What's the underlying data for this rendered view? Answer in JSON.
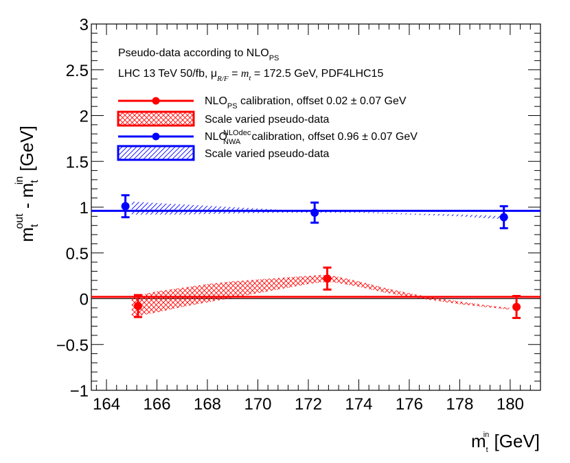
{
  "chart_data": {
    "type": "scatter",
    "x_axis": {
      "title_main": "m",
      "title_sub": "t",
      "title_sup": "in",
      "title_unit": " [GeV]",
      "range": [
        163.4,
        181.2
      ],
      "major_ticks": [
        164,
        166,
        168,
        170,
        172,
        174,
        176,
        178,
        180
      ],
      "tick_labels": [
        "164",
        "166",
        "168",
        "170",
        "172",
        "174",
        "176",
        "178",
        "180"
      ]
    },
    "y_axis": {
      "title_main": "m",
      "title_sub_a": "t",
      "title_sup_a": "out",
      "title_mid": " - m",
      "title_sub_b": "t",
      "title_sup_b": "in",
      "title_unit": " [GeV]",
      "range": [
        -1,
        3
      ],
      "major_ticks": [
        -1,
        -0.5,
        0,
        0.5,
        1,
        1.5,
        2,
        2.5,
        3
      ],
      "tick_labels": [
        "−1",
        "−0.5",
        "0",
        "0.5",
        "1",
        "1.5",
        "2",
        "2.5",
        "3"
      ]
    },
    "header": {
      "line1_text": "Pseudo-data according to NLO",
      "line1_sub": "PS",
      "line2_a": "LHC 13 TeV 50/fb, μ",
      "line2_sub": "R/F",
      "line2_b": " = ",
      "line2_sym": "m",
      "line2_sym_sub": "t",
      "line2_c": " = 172.5 GeV, PDF4LHC15"
    },
    "series": [
      {
        "name": "NLO_PS calibration",
        "color": "#ff0000",
        "offset": 0.02,
        "x": [
          165.25,
          172.75,
          180.25
        ],
        "y": [
          -0.08,
          0.22,
          -0.09
        ],
        "yerr": [
          0.12,
          0.12,
          0.12
        ],
        "band": {
          "x": [
            165.0,
            166.0,
            167.0,
            168.0,
            169.0,
            170.0,
            171.0,
            172.0,
            172.5,
            173.0,
            174.0,
            175.0,
            176.0,
            177.0,
            178.0,
            179.0,
            180.0
          ],
          "upper": [
            0.02,
            0.08,
            0.12,
            0.16,
            0.19,
            0.21,
            0.23,
            0.25,
            0.26,
            0.25,
            0.19,
            0.12,
            0.06,
            0.01,
            -0.03,
            -0.07,
            -0.1
          ],
          "lower": [
            -0.2,
            -0.15,
            -0.09,
            -0.04,
            0.01,
            0.06,
            0.11,
            0.16,
            0.18,
            0.18,
            0.13,
            0.07,
            0.02,
            -0.02,
            -0.06,
            -0.09,
            -0.12
          ]
        }
      },
      {
        "name": "NLO_NWA^NLOdec calibration",
        "color": "#0000ff",
        "offset": 0.96,
        "x": [
          164.75,
          172.25,
          179.75
        ],
        "y": [
          1.01,
          0.94,
          0.89
        ],
        "yerr": [
          0.12,
          0.11,
          0.12
        ],
        "band": {
          "x": [
            165.0,
            167.0,
            169.0,
            171.0,
            172.25,
            174.0,
            176.0,
            178.0,
            179.0,
            179.75
          ],
          "upper": [
            1.06,
            1.03,
            1.0,
            0.97,
            0.96,
            0.95,
            0.93,
            0.92,
            0.91,
            0.9
          ],
          "lower": [
            0.92,
            0.92,
            0.93,
            0.94,
            0.94,
            0.94,
            0.92,
            0.9,
            0.88,
            0.87
          ]
        }
      }
    ],
    "legend": {
      "placement": "top-left",
      "entries": [
        {
          "label_a": "NLO",
          "label_sub": "PS",
          "label_b": " calibration, offset 0.02 ± 0.07 GeV",
          "kind": "marker",
          "color": "#ff0000"
        },
        {
          "label": "Scale varied pseudo-data",
          "kind": "band",
          "color": "#ff0000"
        },
        {
          "label_a": "NLO",
          "label_sub": "NWA",
          "label_sup": "NLOdec",
          "label_b": " calibration, offset 0.96 ± 0.07 GeV",
          "kind": "marker",
          "color": "#0000ff"
        },
        {
          "label": "Scale varied pseudo-data",
          "kind": "band",
          "color": "#0000ff"
        }
      ]
    }
  }
}
